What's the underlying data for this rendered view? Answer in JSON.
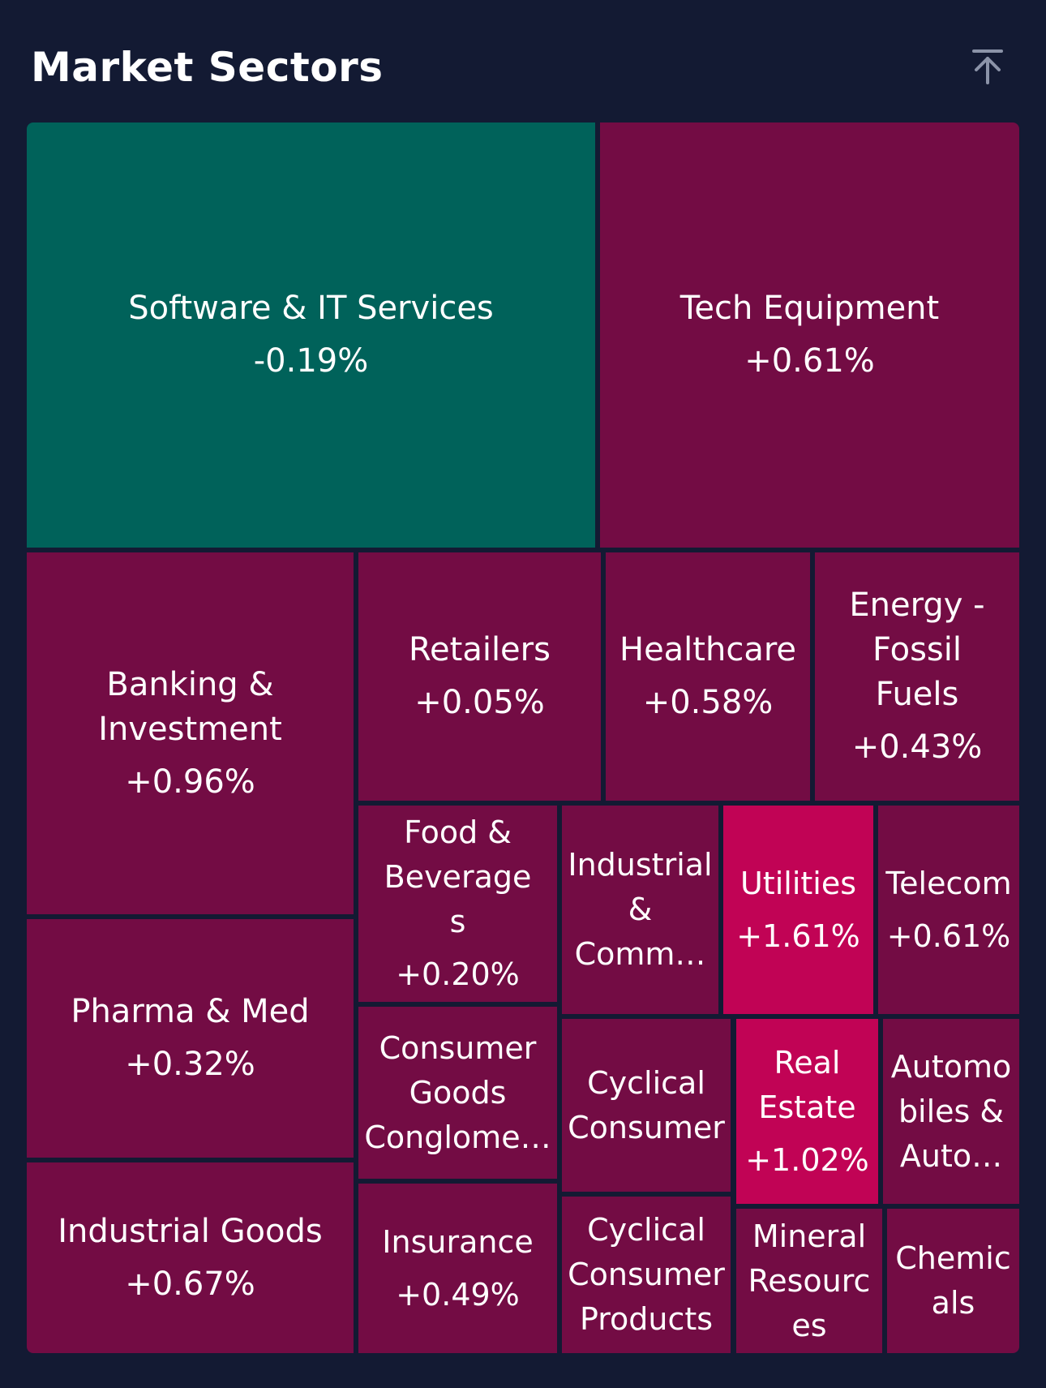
{
  "header": {
    "title": "Market Sectors",
    "collapse_icon": "arrow-up-to-line-icon"
  },
  "colors": {
    "background": "#131a33",
    "negative_tile": "#00625a",
    "positive_tile": "#730c44",
    "strong_positive_tile": "#c10355"
  },
  "sectors": [
    {
      "name": "Software & IT Services",
      "change": "-0.19%"
    },
    {
      "name": "Tech Equipment",
      "change": "+0.61%"
    },
    {
      "name": "Banking & Investment",
      "change": "+0.96%"
    },
    {
      "name": "Retailers",
      "change": "+0.05%"
    },
    {
      "name": "Healthcare",
      "change": "+0.58%"
    },
    {
      "name": "Energy - Fossil Fuels",
      "change": "+0.43%"
    },
    {
      "name": "Food & Beverages",
      "change": "+0.20%"
    },
    {
      "name": "Industrial & Comm…",
      "change": ""
    },
    {
      "name": "Utilities",
      "change": "+1.61%"
    },
    {
      "name": "Telecom",
      "change": "+0.61%"
    },
    {
      "name": "Pharma & Med",
      "change": "+0.32%"
    },
    {
      "name": "Consumer Goods Conglome…",
      "change": ""
    },
    {
      "name": "Cyclical Consumer",
      "change": ""
    },
    {
      "name": "Real Estate",
      "change": "+1.02%"
    },
    {
      "name": "Automobiles & Auto…",
      "change": ""
    },
    {
      "name": "Industrial Goods",
      "change": "+0.67%"
    },
    {
      "name": "Insurance",
      "change": "+0.49%"
    },
    {
      "name": "Cyclical Consumer Products",
      "change": ""
    },
    {
      "name": "Mineral Resources",
      "change": ""
    },
    {
      "name": "Chemicals",
      "change": ""
    }
  ]
}
